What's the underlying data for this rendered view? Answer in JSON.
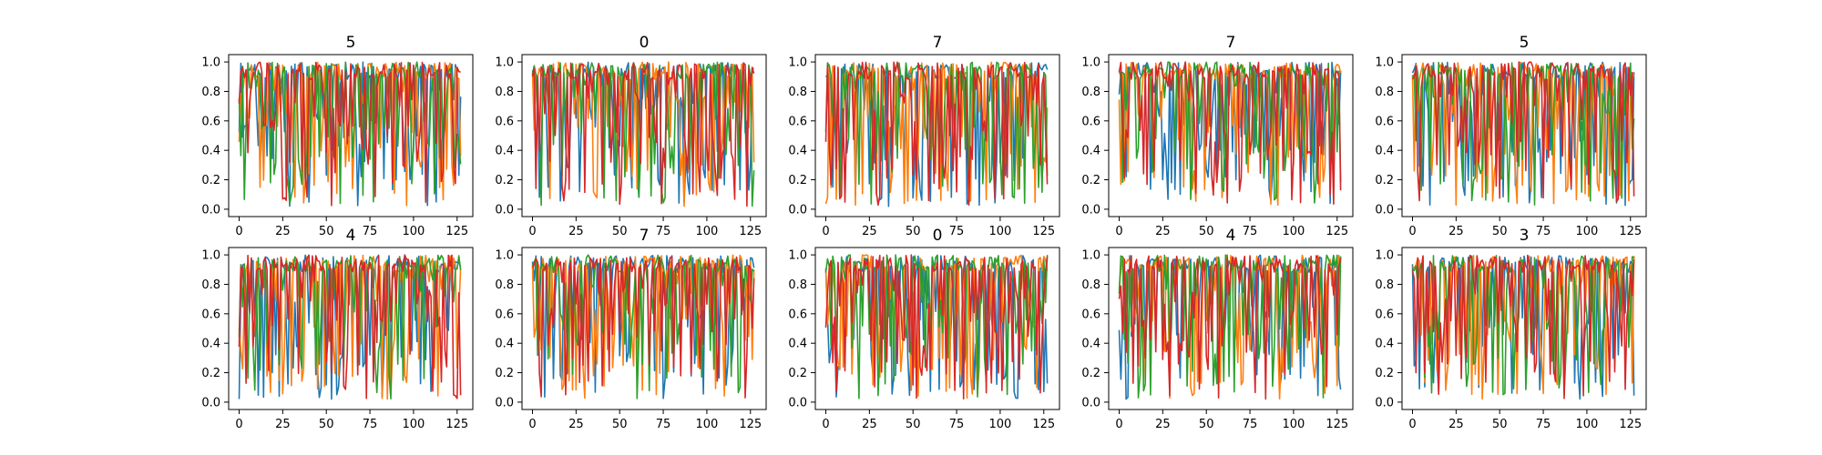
{
  "chart_data": [
    {
      "type": "line",
      "title": "5",
      "xlim": [
        -6,
        134
      ],
      "ylim": [
        -0.05,
        1.05
      ],
      "xticks": [
        0,
        25,
        50,
        75,
        100,
        125
      ],
      "yticks": [
        0.0,
        0.2,
        0.4,
        0.6,
        0.8,
        1.0
      ],
      "n_points": 128,
      "series_colors": [
        "#1f77b4",
        "#ff7f0e",
        "#2ca02c",
        "#d62728"
      ],
      "grid": false
    },
    {
      "type": "line",
      "title": "0",
      "xlim": [
        -6,
        134
      ],
      "ylim": [
        -0.05,
        1.05
      ],
      "xticks": [
        0,
        25,
        50,
        75,
        100,
        125
      ],
      "yticks": [
        0.0,
        0.2,
        0.4,
        0.6,
        0.8,
        1.0
      ],
      "n_points": 128,
      "series_colors": [
        "#1f77b4",
        "#ff7f0e",
        "#2ca02c",
        "#d62728"
      ],
      "grid": false
    },
    {
      "type": "line",
      "title": "7",
      "xlim": [
        -6,
        134
      ],
      "ylim": [
        -0.05,
        1.05
      ],
      "xticks": [
        0,
        25,
        50,
        75,
        100,
        125
      ],
      "yticks": [
        0.0,
        0.2,
        0.4,
        0.6,
        0.8,
        1.0
      ],
      "n_points": 128,
      "series_colors": [
        "#1f77b4",
        "#ff7f0e",
        "#2ca02c",
        "#d62728"
      ],
      "grid": false
    },
    {
      "type": "line",
      "title": "7",
      "xlim": [
        -6,
        134
      ],
      "ylim": [
        -0.05,
        1.05
      ],
      "xticks": [
        0,
        25,
        50,
        75,
        100,
        125
      ],
      "yticks": [
        0.0,
        0.2,
        0.4,
        0.6,
        0.8,
        1.0
      ],
      "n_points": 128,
      "series_colors": [
        "#1f77b4",
        "#ff7f0e",
        "#2ca02c",
        "#d62728"
      ],
      "grid": false
    },
    {
      "type": "line",
      "title": "5",
      "xlim": [
        -6,
        134
      ],
      "ylim": [
        -0.05,
        1.05
      ],
      "xticks": [
        0,
        25,
        50,
        75,
        100,
        125
      ],
      "yticks": [
        0.0,
        0.2,
        0.4,
        0.6,
        0.8,
        1.0
      ],
      "n_points": 128,
      "series_colors": [
        "#1f77b4",
        "#ff7f0e",
        "#2ca02c",
        "#d62728"
      ],
      "grid": false
    },
    {
      "type": "line",
      "title": "4",
      "xlim": [
        -6,
        134
      ],
      "ylim": [
        -0.05,
        1.05
      ],
      "xticks": [
        0,
        25,
        50,
        75,
        100,
        125
      ],
      "yticks": [
        0.0,
        0.2,
        0.4,
        0.6,
        0.8,
        1.0
      ],
      "n_points": 128,
      "series_colors": [
        "#1f77b4",
        "#ff7f0e",
        "#2ca02c",
        "#d62728"
      ],
      "grid": false
    },
    {
      "type": "line",
      "title": "7",
      "xlim": [
        -6,
        134
      ],
      "ylim": [
        -0.05,
        1.05
      ],
      "xticks": [
        0,
        25,
        50,
        75,
        100,
        125
      ],
      "yticks": [
        0.0,
        0.2,
        0.4,
        0.6,
        0.8,
        1.0
      ],
      "n_points": 128,
      "series_colors": [
        "#1f77b4",
        "#ff7f0e",
        "#2ca02c",
        "#d62728"
      ],
      "grid": false
    },
    {
      "type": "line",
      "title": "0",
      "xlim": [
        -6,
        134
      ],
      "ylim": [
        -0.05,
        1.05
      ],
      "xticks": [
        0,
        25,
        50,
        75,
        100,
        125
      ],
      "yticks": [
        0.0,
        0.2,
        0.4,
        0.6,
        0.8,
        1.0
      ],
      "n_points": 128,
      "series_colors": [
        "#1f77b4",
        "#ff7f0e",
        "#2ca02c",
        "#d62728"
      ],
      "grid": false
    },
    {
      "type": "line",
      "title": "4",
      "xlim": [
        -6,
        134
      ],
      "ylim": [
        -0.05,
        1.05
      ],
      "xticks": [
        0,
        25,
        50,
        75,
        100,
        125
      ],
      "yticks": [
        0.0,
        0.2,
        0.4,
        0.6,
        0.8,
        1.0
      ],
      "n_points": 128,
      "series_colors": [
        "#1f77b4",
        "#ff7f0e",
        "#2ca02c",
        "#d62728"
      ],
      "grid": false
    },
    {
      "type": "line",
      "title": "3",
      "xlim": [
        -6,
        134
      ],
      "ylim": [
        -0.05,
        1.05
      ],
      "xticks": [
        0,
        25,
        50,
        75,
        100,
        125
      ],
      "yticks": [
        0.0,
        0.2,
        0.4,
        0.6,
        0.8,
        1.0
      ],
      "n_points": 128,
      "series_colors": [
        "#1f77b4",
        "#ff7f0e",
        "#2ca02c",
        "#d62728"
      ],
      "grid": false
    }
  ]
}
